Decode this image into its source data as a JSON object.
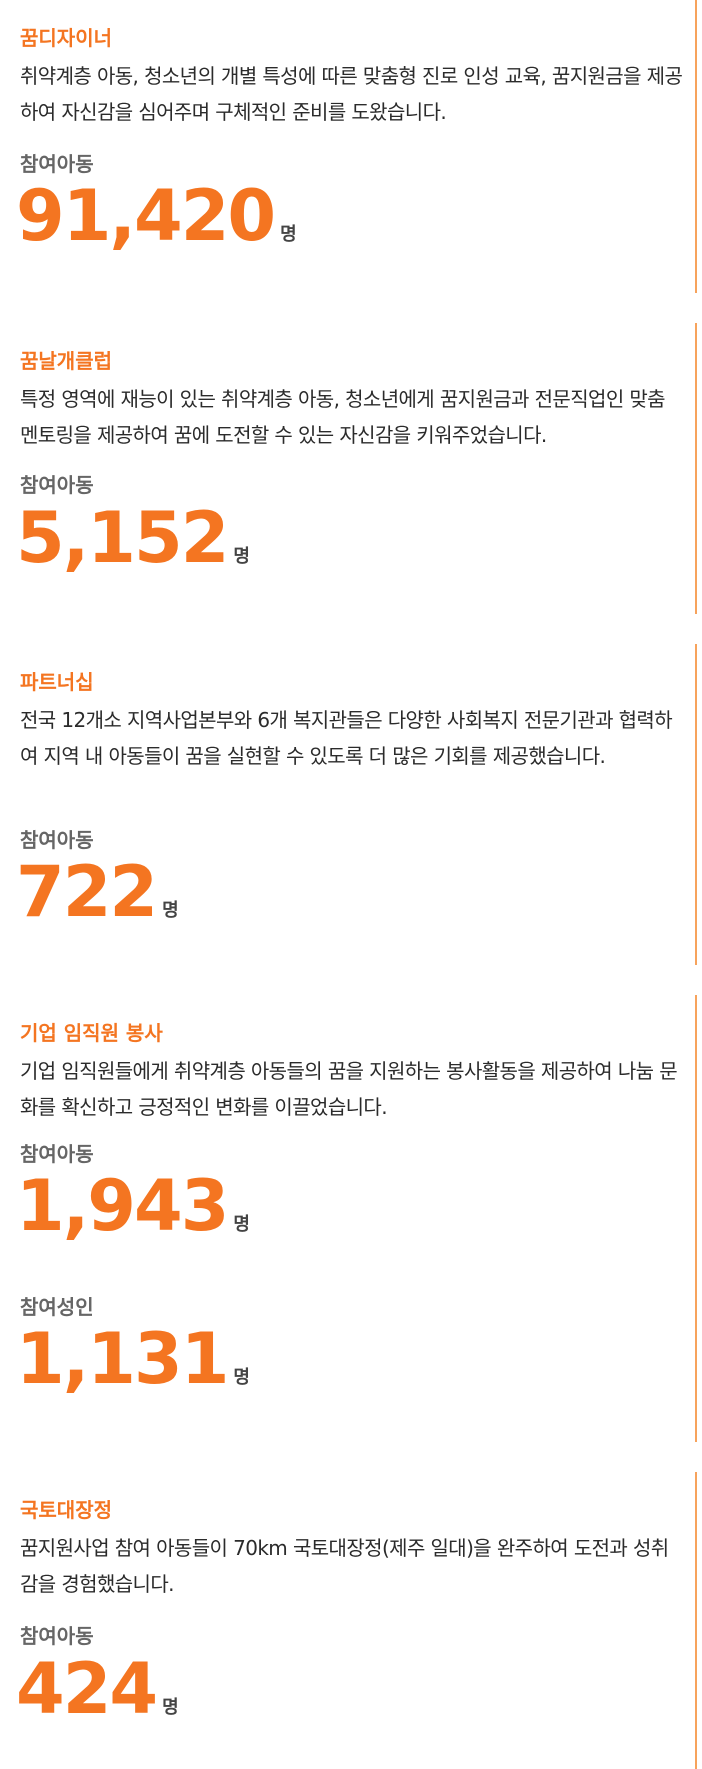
{
  "cards": [
    {
      "title": "꿈디자이너",
      "description": "취약계층 아동, 청소년의 개별 특성에 따른 맞춤형 진로 인성 교육, 꿈지원금을 제공하여 자신감을 심어주며 구체적인 준비를 도왔습니다.",
      "stats": [
        {
          "label": "참여아동",
          "value": "91,420",
          "unit": "명"
        }
      ]
    },
    {
      "title": "꿈날개클럽",
      "description": "특정 영역에 재능이 있는 취약계층 아동, 청소년에게 꿈지원금과 전문직업인 맞춤 멘토링을 제공하여 꿈에 도전할 수 있는 자신감을 키워주었습니다.",
      "stats": [
        {
          "label": "참여아동",
          "value": "5,152",
          "unit": "명"
        }
      ]
    },
    {
      "title": "파트너십",
      "description": "전국 12개소 지역사업본부와 6개 복지관들은 다양한 사회복지 전문기관과 협력하여 지역 내 아동들이 꿈을 실현할 수 있도록 더 많은 기회를 제공했습니다.",
      "stats": [
        {
          "label": "참여아동",
          "value": "722",
          "unit": "명"
        }
      ]
    },
    {
      "title": "기업 임직원 봉사",
      "description": "기업 임직원들에게 취약계층 아동들의 꿈을 지원하는 봉사활동을 제공하여 나눔 문화를 확신하고 긍정적인 변화를 이끌었습니다.",
      "stats": [
        {
          "label": "참여아동",
          "value": "1,943",
          "unit": "명"
        },
        {
          "label": "참여성인",
          "value": "1,131",
          "unit": "명"
        }
      ]
    },
    {
      "title": "국토대장정",
      "description": "꿈지원사업 참여 아동들이 70km 국토대장정(제주 일대)을 완주하여 도전과 성취감을 경험했습니다.",
      "stats": [
        {
          "label": "참여아동",
          "value": "424",
          "unit": "명"
        }
      ]
    }
  ],
  "colors": {
    "accent": "#f47521",
    "border": "#f7a35c",
    "label": "#666666",
    "text": "#2b2b2b"
  }
}
